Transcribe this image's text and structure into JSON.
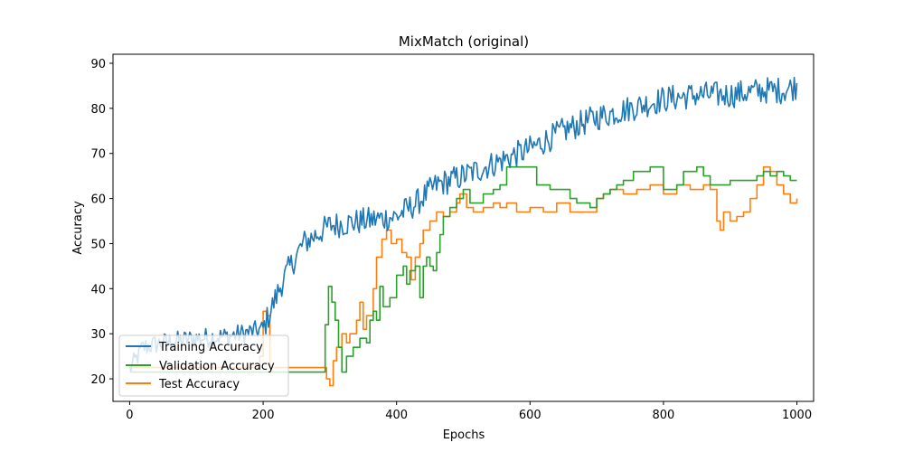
{
  "chart_data": {
    "type": "line",
    "title": "MixMatch (original)",
    "xlabel": "Epochs",
    "ylabel": "Accuracy",
    "xlim": [
      -25,
      1025
    ],
    "ylim": [
      15,
      92
    ],
    "xticks": [
      0,
      200,
      400,
      600,
      800,
      1000
    ],
    "yticks": [
      20,
      30,
      40,
      50,
      60,
      70,
      80,
      90
    ],
    "grid": false,
    "legend_position": "lower-left",
    "series": [
      {
        "name": "Training Accuracy",
        "color": "#1f77b4",
        "noise": 2.5,
        "trend": [
          [
            0,
            22
          ],
          [
            20,
            27
          ],
          [
            50,
            28
          ],
          [
            100,
            29
          ],
          [
            150,
            29.5
          ],
          [
            200,
            31
          ],
          [
            230,
            42
          ],
          [
            260,
            50
          ],
          [
            300,
            54
          ],
          [
            350,
            55
          ],
          [
            400,
            56
          ],
          [
            430,
            59
          ],
          [
            460,
            63
          ],
          [
            500,
            65
          ],
          [
            550,
            68
          ],
          [
            600,
            71
          ],
          [
            650,
            75
          ],
          [
            700,
            78
          ],
          [
            750,
            80
          ],
          [
            800,
            82
          ],
          [
            850,
            83
          ],
          [
            900,
            83
          ],
          [
            950,
            84
          ],
          [
            980,
            84
          ],
          [
            1000,
            85
          ]
        ]
      },
      {
        "name": "Validation Accuracy",
        "color": "#2ca02c",
        "points": [
          [
            0,
            21.5
          ],
          [
            290,
            21.5
          ],
          [
            293,
            32
          ],
          [
            298,
            40.5
          ],
          [
            303,
            37
          ],
          [
            308,
            33
          ],
          [
            313,
            27
          ],
          [
            318,
            21.5
          ],
          [
            325,
            25
          ],
          [
            335,
            27
          ],
          [
            345,
            29
          ],
          [
            355,
            28
          ],
          [
            360,
            33
          ],
          [
            365,
            35
          ],
          [
            370,
            33
          ],
          [
            375,
            40.5
          ],
          [
            380,
            36
          ],
          [
            390,
            38
          ],
          [
            400,
            43
          ],
          [
            410,
            45
          ],
          [
            415,
            41
          ],
          [
            420,
            44
          ],
          [
            428,
            45
          ],
          [
            435,
            38
          ],
          [
            440,
            45
          ],
          [
            445,
            47
          ],
          [
            450,
            45
          ],
          [
            455,
            44
          ],
          [
            460,
            48
          ],
          [
            465,
            52
          ],
          [
            470,
            56
          ],
          [
            480,
            58
          ],
          [
            490,
            60
          ],
          [
            500,
            62
          ],
          [
            510,
            59
          ],
          [
            520,
            59
          ],
          [
            530,
            61
          ],
          [
            545,
            62
          ],
          [
            555,
            63
          ],
          [
            565,
            67
          ],
          [
            600,
            67
          ],
          [
            610,
            63
          ],
          [
            620,
            63
          ],
          [
            630,
            62
          ],
          [
            640,
            62
          ],
          [
            650,
            62
          ],
          [
            660,
            60
          ],
          [
            670,
            59
          ],
          [
            680,
            59
          ],
          [
            690,
            58
          ],
          [
            700,
            60
          ],
          [
            710,
            61
          ],
          [
            720,
            62
          ],
          [
            730,
            63
          ],
          [
            740,
            64
          ],
          [
            755,
            66
          ],
          [
            780,
            67
          ],
          [
            800,
            62
          ],
          [
            820,
            63
          ],
          [
            830,
            66
          ],
          [
            850,
            67
          ],
          [
            860,
            65
          ],
          [
            870,
            63
          ],
          [
            880,
            63
          ],
          [
            890,
            63
          ],
          [
            900,
            64
          ],
          [
            920,
            64
          ],
          [
            940,
            65
          ],
          [
            950,
            66
          ],
          [
            960,
            65
          ],
          [
            970,
            66
          ],
          [
            980,
            65
          ],
          [
            990,
            64
          ],
          [
            1000,
            64
          ]
        ]
      },
      {
        "name": "Test Accuracy",
        "color": "#ff7f0e",
        "points": [
          [
            0,
            22.5
          ],
          [
            180,
            22.5
          ],
          [
            195,
            25
          ],
          [
            200,
            35
          ],
          [
            205,
            34
          ],
          [
            210,
            22.5
          ],
          [
            290,
            22.5
          ],
          [
            295,
            20
          ],
          [
            300,
            18.5
          ],
          [
            305,
            24
          ],
          [
            310,
            27
          ],
          [
            318,
            30
          ],
          [
            325,
            28
          ],
          [
            330,
            30
          ],
          [
            340,
            33
          ],
          [
            345,
            37
          ],
          [
            350,
            31
          ],
          [
            355,
            34
          ],
          [
            365,
            40
          ],
          [
            370,
            47
          ],
          [
            378,
            51
          ],
          [
            385,
            53
          ],
          [
            392,
            50
          ],
          [
            400,
            51
          ],
          [
            408,
            48
          ],
          [
            415,
            47
          ],
          [
            422,
            42
          ],
          [
            428,
            47
          ],
          [
            435,
            50
          ],
          [
            440,
            53
          ],
          [
            450,
            55
          ],
          [
            460,
            57
          ],
          [
            470,
            56
          ],
          [
            480,
            57
          ],
          [
            490,
            59
          ],
          [
            495,
            61
          ],
          [
            505,
            58
          ],
          [
            515,
            57
          ],
          [
            530,
            58
          ],
          [
            545,
            59
          ],
          [
            555,
            58
          ],
          [
            565,
            59
          ],
          [
            580,
            57
          ],
          [
            600,
            58
          ],
          [
            620,
            57
          ],
          [
            640,
            59
          ],
          [
            660,
            57
          ],
          [
            680,
            57
          ],
          [
            700,
            60
          ],
          [
            710,
            61
          ],
          [
            720,
            62
          ],
          [
            740,
            61
          ],
          [
            760,
            62
          ],
          [
            780,
            63
          ],
          [
            800,
            61
          ],
          [
            820,
            63
          ],
          [
            840,
            62
          ],
          [
            860,
            63
          ],
          [
            870,
            62
          ],
          [
            880,
            55
          ],
          [
            885,
            53
          ],
          [
            890,
            57
          ],
          [
            900,
            55
          ],
          [
            910,
            56
          ],
          [
            920,
            57
          ],
          [
            930,
            60
          ],
          [
            940,
            63
          ],
          [
            950,
            67
          ],
          [
            960,
            66
          ],
          [
            970,
            63
          ],
          [
            980,
            61
          ],
          [
            990,
            59
          ],
          [
            1000,
            60
          ]
        ]
      }
    ]
  }
}
